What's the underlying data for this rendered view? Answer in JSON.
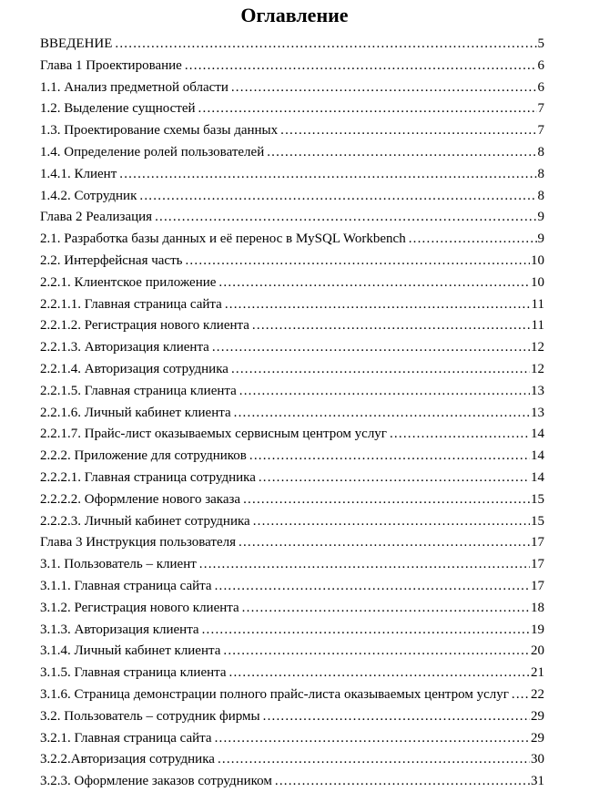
{
  "document": {
    "title": "Оглавление",
    "toc": {
      "entries": [
        {
          "label": "ВВЕДЕНИЕ",
          "page": "5"
        },
        {
          "label": "Глава 1 Проектирование",
          "page": "6"
        },
        {
          "label": "1.1. Анализ предметной области",
          "page": "6"
        },
        {
          "label": "1.2. Выделение сущностей",
          "page": "7"
        },
        {
          "label": "1.3. Проектирование схемы базы данных",
          "page": "7"
        },
        {
          "label": "1.4. Определение ролей пользователей",
          "page": "8"
        },
        {
          "label": "1.4.1. Клиент",
          "page": "8"
        },
        {
          "label": "1.4.2. Сотрудник",
          "page": "8"
        },
        {
          "label": "Глава 2 Реализация",
          "page": "9"
        },
        {
          "label": "2.1. Разработка базы данных и её перенос в MySQL Workbench",
          "page": "9"
        },
        {
          "label": "2.2. Интерфейсная часть",
          "page": "10"
        },
        {
          "label": "2.2.1. Клиентское приложение",
          "page": "10"
        },
        {
          "label": "2.2.1.1. Главная страница сайта",
          "page": "11"
        },
        {
          "label": "2.2.1.2. Регистрация нового клиента",
          "page": "11"
        },
        {
          "label": "2.2.1.3. Авторизация клиента",
          "page": "12"
        },
        {
          "label": "2.2.1.4. Авторизация сотрудника",
          "page": "12"
        },
        {
          "label": "2.2.1.5. Главная страница клиента",
          "page": "13"
        },
        {
          "label": "2.2.1.6. Личный кабинет клиента",
          "page": "13"
        },
        {
          "label": "2.2.1.7. Прайс-лист оказываемых сервисным центром услуг",
          "page": "14"
        },
        {
          "label": "2.2.2. Приложение для сотрудников",
          "page": "14"
        },
        {
          "label": "2.2.2.1. Главная страница сотрудника",
          "page": "14"
        },
        {
          "label": "2.2.2.2. Оформление нового заказа",
          "page": "15"
        },
        {
          "label": "2.2.2.3. Личный кабинет сотрудника",
          "page": "15"
        },
        {
          "label": "Глава 3 Инструкция пользователя",
          "page": "17"
        },
        {
          "label": "3.1. Пользователь – клиент",
          "page": "17"
        },
        {
          "label": "3.1.1. Главная страница сайта",
          "page": "17"
        },
        {
          "label": "3.1.2. Регистрация нового клиента",
          "page": "18"
        },
        {
          "label": "3.1.3. Авторизация клиента",
          "page": "19"
        },
        {
          "label": "3.1.4. Личный кабинет клиента",
          "page": "20"
        },
        {
          "label": "3.1.5. Главная страница клиента",
          "page": "21"
        },
        {
          "label": "3.1.6. Страница демонстрации полного прайс-листа оказываемых центром услуг",
          "page": "22"
        },
        {
          "label": "3.2. Пользователь – сотрудник фирмы",
          "page": "29"
        },
        {
          "label": "3.2.1. Главная страница сайта",
          "page": "29"
        },
        {
          "label": "3.2.2.Авторизация сотрудника",
          "page": "30"
        },
        {
          "label": "3.2.3. Оформление заказов сотрудником",
          "page": "31"
        }
      ]
    },
    "colors": {
      "text": "#000000",
      "background": "#ffffff"
    }
  }
}
